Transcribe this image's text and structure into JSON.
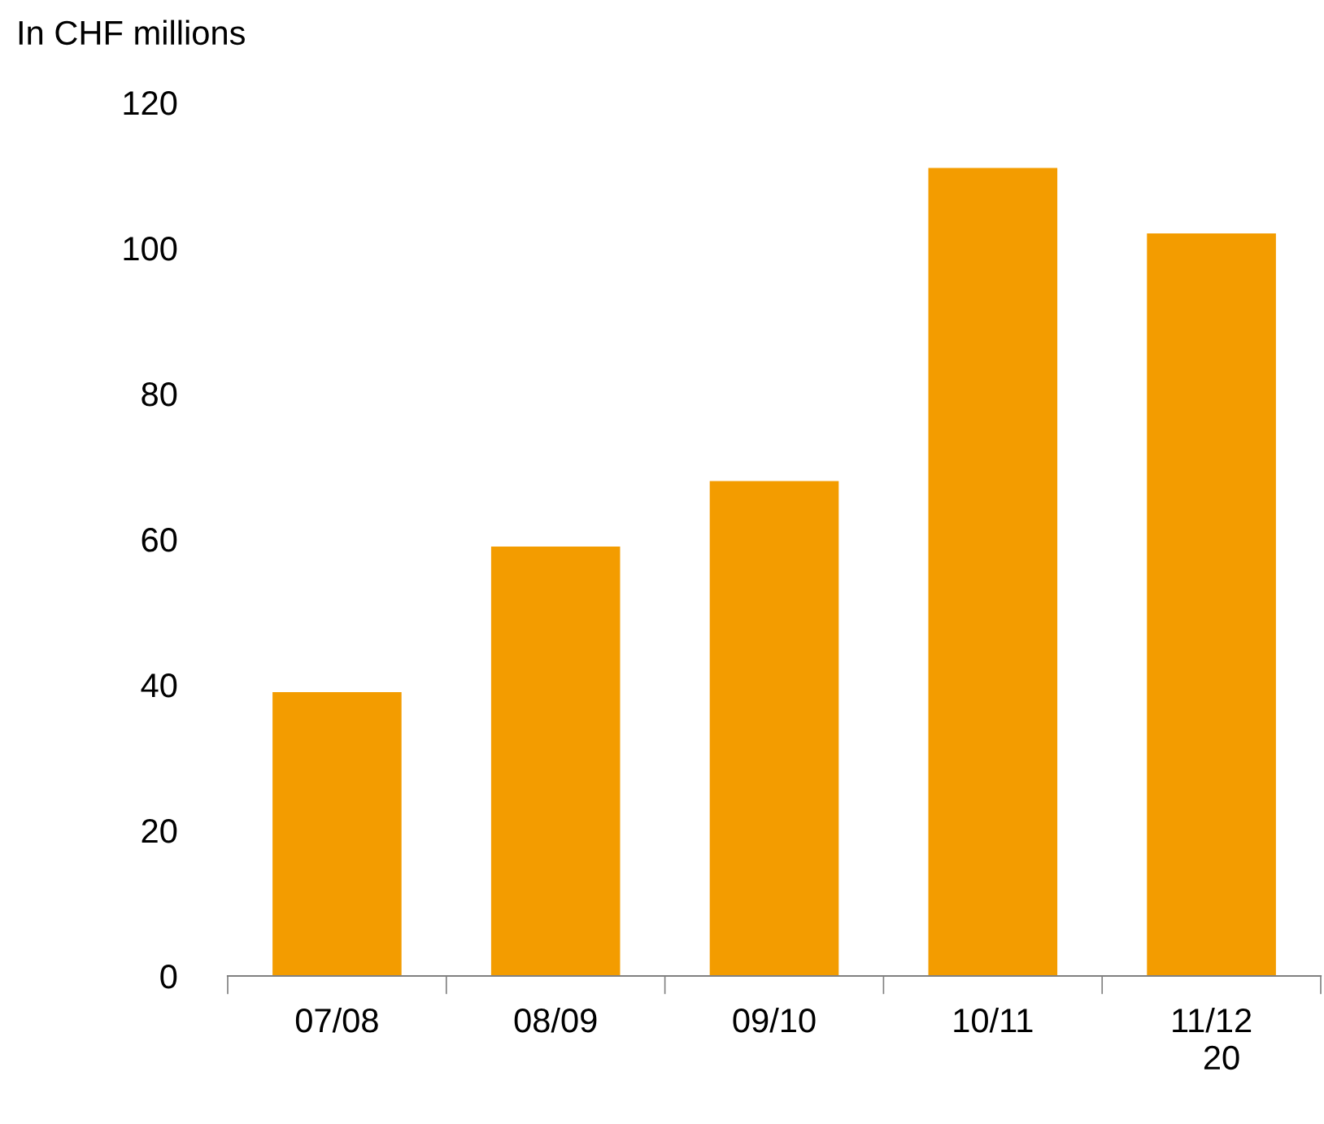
{
  "chart_data": {
    "type": "bar",
    "ylabel": "In CHF millions",
    "categories": [
      "07/08",
      "08/09",
      "09/10",
      "10/11",
      "11/12"
    ],
    "values": [
      39,
      59,
      68,
      111,
      102
    ],
    "color": "#f39c00",
    "ylim": [
      0,
      120
    ],
    "yticks": [
      0,
      20,
      40,
      60,
      80,
      100,
      120
    ],
    "grid": false,
    "legend": false,
    "annotations": [
      "20"
    ]
  }
}
